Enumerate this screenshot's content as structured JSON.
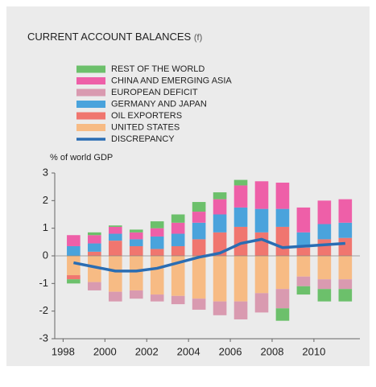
{
  "chart_data": {
    "type": "bar",
    "stacked": true,
    "title": "CURRENT ACCOUNT BALANCES",
    "title_suffix": "(f)",
    "ylabel": "% of world GDP",
    "x": [
      1998,
      1999,
      2000,
      2001,
      2002,
      2003,
      2004,
      2005,
      2006,
      2007,
      2008,
      2009,
      2010,
      2011
    ],
    "xlim": [
      1997.6,
      2012.2
    ],
    "xticks": [
      1998,
      2000,
      2002,
      2004,
      2006,
      2008,
      2010
    ],
    "ylim": [
      -3,
      3
    ],
    "yticks": [
      3,
      2,
      1,
      0,
      -1,
      -2,
      -3
    ],
    "series": [
      {
        "name": "REST OF THE WORLD",
        "color": "#6cc06b",
        "values": [
          -0.15,
          0.1,
          0.05,
          0.1,
          0.25,
          0.3,
          0.35,
          0.25,
          0.2,
          0,
          -0.45,
          -0.3,
          -0.45,
          -0.45
        ]
      },
      {
        "name": "CHINA AND EMERGING ASIA",
        "color": "#ee5fa8",
        "values": [
          0.4,
          0.3,
          0.25,
          0.25,
          0.3,
          0.4,
          0.4,
          0.55,
          0.8,
          1.0,
          0.95,
          0.9,
          0.85,
          0.85
        ]
      },
      {
        "name": "EUROPEAN DEFICIT",
        "color": "#d99ab0",
        "values": [
          0,
          -0.3,
          -0.35,
          -0.3,
          -0.25,
          -0.3,
          -0.4,
          -0.5,
          -0.65,
          -0.7,
          -0.7,
          -0.35,
          -0.35,
          -0.35
        ]
      },
      {
        "name": "GERMANY AND JAPAN",
        "color": "#4aa3dc",
        "values": [
          0.35,
          0.3,
          0.25,
          0.25,
          0.45,
          0.45,
          0.6,
          0.65,
          0.7,
          0.85,
          0.65,
          0.55,
          0.55,
          0.55
        ]
      },
      {
        "name": "OIL EXPORTERS",
        "color": "#f0766f",
        "values": [
          -0.15,
          0.15,
          0.55,
          0.35,
          0.25,
          0.35,
          0.6,
          0.85,
          1.05,
          0.85,
          1.05,
          0.3,
          0.6,
          0.65
        ]
      },
      {
        "name": "UNITED STATES",
        "color": "#f7bb84",
        "values": [
          -0.7,
          -0.95,
          -1.3,
          -1.25,
          -1.4,
          -1.45,
          -1.55,
          -1.65,
          -1.65,
          -1.35,
          -1.2,
          -0.75,
          -0.85,
          -0.85
        ]
      },
      {
        "name": "DISCREPANCY",
        "type": "line",
        "color": "#2a6db3",
        "values": [
          -0.25,
          -0.4,
          -0.55,
          -0.55,
          -0.45,
          -0.25,
          -0.05,
          0.1,
          0.45,
          0.6,
          0.3,
          0.35,
          0.4,
          0.45
        ]
      }
    ]
  }
}
